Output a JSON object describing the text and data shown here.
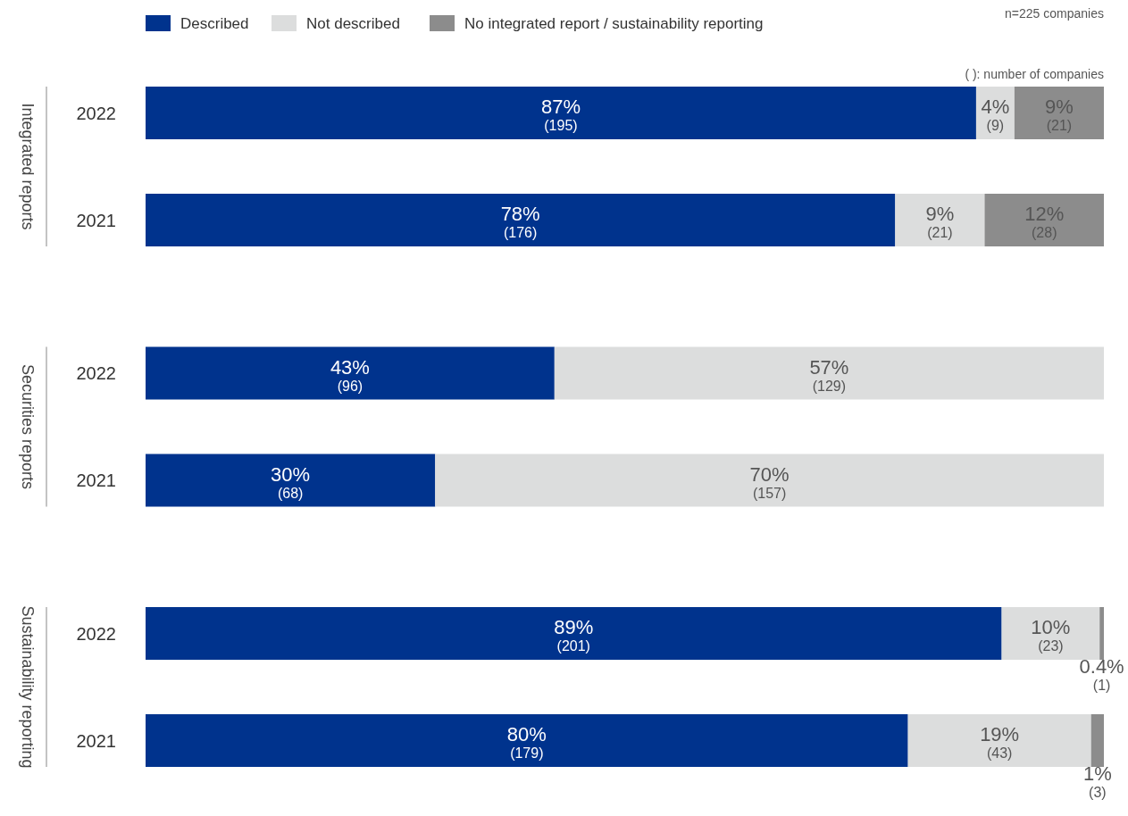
{
  "chart_data": [
    {
      "type": "bar",
      "orientation": "horizontal",
      "stacked": true,
      "ylabel": "Integrated reports",
      "categories": [
        "2022",
        "2021"
      ],
      "xlim": [
        0,
        225
      ],
      "tick_labels": "y",
      "legend": "top left",
      "annotations": [
        "n=225 companies",
        "( ): number of companies"
      ],
      "series": [
        {
          "name": "Described",
          "color": "#00338d",
          "values": [
            195,
            176
          ],
          "value_labels": [
            "87% (195)",
            "78% (176)"
          ]
        },
        {
          "name": "Not described",
          "color": "#dcdddd",
          "values": [
            9,
            21
          ],
          "value_labels": [
            "4% (9)",
            "9% (21)"
          ]
        },
        {
          "name": "No integrated report / sustainability reporting",
          "color": "#8c8c8c",
          "values": [
            21,
            28
          ],
          "value_labels": [
            "9% (21)",
            "12% (28)"
          ]
        }
      ]
    },
    {
      "type": "bar",
      "orientation": "horizontal",
      "stacked": true,
      "ylabel": "Securities reports",
      "categories": [
        "2022",
        "2021"
      ],
      "xlim": [
        0,
        225
      ],
      "tick_labels": "y",
      "series": [
        {
          "color": "#00338d",
          "values": [
            96,
            68
          ],
          "value_labels": [
            "43% (96)",
            "30% (68)"
          ]
        },
        {
          "color": "#dcdddd",
          "values": [
            129,
            157
          ],
          "value_labels": [
            "57% (129)",
            "70% (157)"
          ]
        }
      ]
    },
    {
      "type": "bar",
      "orientation": "horizontal",
      "stacked": true,
      "ylabel": "Sustainability reporting",
      "categories": [
        "2022",
        "2021"
      ],
      "xlim": [
        0,
        225
      ],
      "tick_labels": "y",
      "series": [
        {
          "color": "#00338d",
          "values": [
            201,
            179
          ],
          "value_labels": [
            "89% (201)",
            "80% (179)"
          ]
        },
        {
          "color": "#dcdddd",
          "values": [
            23,
            43
          ],
          "value_labels": [
            "10% (23)",
            "19% (43)"
          ]
        },
        {
          "color": "#8c8c8c",
          "values": [
            1,
            3
          ],
          "value_labels": [
            "0.4% (1)",
            "1% (3)"
          ]
        }
      ]
    }
  ]
}
